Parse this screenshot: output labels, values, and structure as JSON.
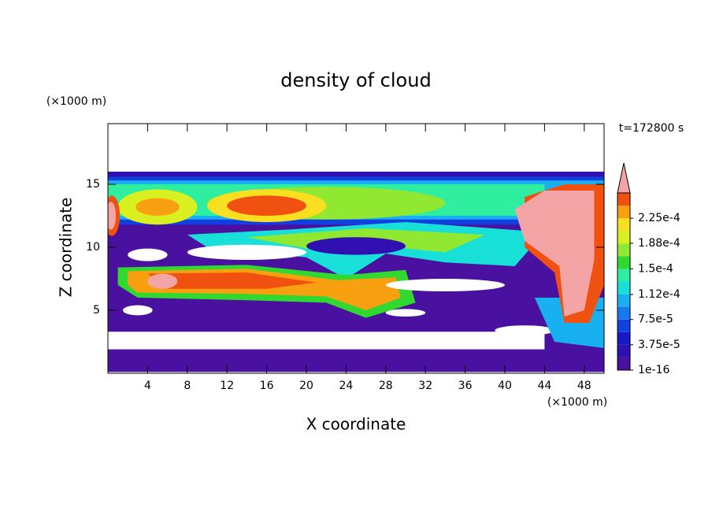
{
  "chart_data": {
    "type": "contour",
    "title": "density of cloud",
    "x_label": "X coordinate",
    "y_label": "Z coordinate",
    "x_unit": "(×1000 m)",
    "y_unit": "(×1000 m)",
    "time_label": "t=172800 s",
    "xlim": [
      0,
      50
    ],
    "ylim": [
      0,
      20
    ],
    "xticks": [
      4,
      8,
      12,
      16,
      20,
      24,
      28,
      32,
      36,
      40,
      44,
      48
    ],
    "yticks": [
      5,
      10,
      15
    ],
    "clim": [
      1e-16,
      0.0002625
    ],
    "cticks": [
      1e-16,
      {
        "value": 3.75e-05,
        "label": "3.75e-5"
      },
      {
        "value": 7.5e-05,
        "label": "7.5e-5"
      },
      {
        "value": 0.000112,
        "label": "1.12e-4"
      },
      {
        "value": 0.00015,
        "label": "1.5e-4"
      },
      {
        "value": 0.000188,
        "label": "1.88e-4"
      },
      {
        "value": 0.000225,
        "label": "2.25e-4"
      }
    ],
    "level_colors": [
      "#4a10a0",
      "#3010b0",
      "#1818c8",
      "#1040e0",
      "#1878f0",
      "#18b0f0",
      "#18e0d8",
      "#30eea0",
      "#30d830",
      "#90e830",
      "#d8f020",
      "#f8e020",
      "#f8a010",
      "#f05010"
    ],
    "over_color": "#f4a4a4"
  }
}
